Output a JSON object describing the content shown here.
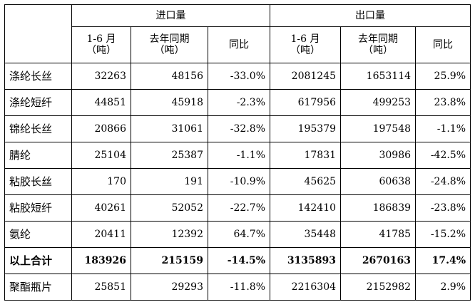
{
  "table": {
    "groups": {
      "import": "进口量",
      "export": "出口量"
    },
    "subheaders": {
      "import": [
        {
          "line1": "1-6 月",
          "line2": "（吨）"
        },
        {
          "line1": "去年同期",
          "line2": "（吨）"
        },
        {
          "line1": "同比",
          "line2": ""
        }
      ],
      "export": [
        {
          "line1": "1-6 月",
          "line2": "（吨）"
        },
        {
          "line1": "去年同期",
          "line2": "（吨）"
        },
        {
          "line1": "同比",
          "line2": ""
        }
      ]
    },
    "rows": [
      {
        "label": "涤纶长丝",
        "imp_cur": "32263",
        "imp_prev": "48156",
        "imp_yoy": "-33.0%",
        "exp_cur": "2081245",
        "exp_prev": "1653114",
        "exp_yoy": "25.9%"
      },
      {
        "label": "涤纶短纤",
        "imp_cur": "44851",
        "imp_prev": "45918",
        "imp_yoy": "-2.3%",
        "exp_cur": "617956",
        "exp_prev": "499253",
        "exp_yoy": "23.8%"
      },
      {
        "label": "锦纶长丝",
        "imp_cur": "20866",
        "imp_prev": "31061",
        "imp_yoy": "-32.8%",
        "exp_cur": "195379",
        "exp_prev": "197548",
        "exp_yoy": "-1.1%"
      },
      {
        "label": "腈纶",
        "imp_cur": "25104",
        "imp_prev": "25387",
        "imp_yoy": "-1.1%",
        "exp_cur": "17831",
        "exp_prev": "30986",
        "exp_yoy": "-42.5%"
      },
      {
        "label": "粘胶长丝",
        "imp_cur": "170",
        "imp_prev": "191",
        "imp_yoy": "-10.9%",
        "exp_cur": "45625",
        "exp_prev": "60638",
        "exp_yoy": "-24.8%"
      },
      {
        "label": "粘胶短纤",
        "imp_cur": "40261",
        "imp_prev": "52052",
        "imp_yoy": "-22.7%",
        "exp_cur": "142410",
        "exp_prev": "186839",
        "exp_yoy": "-23.8%"
      },
      {
        "label": "氨纶",
        "imp_cur": "20411",
        "imp_prev": "12392",
        "imp_yoy": "64.7%",
        "exp_cur": "35448",
        "exp_prev": "41785",
        "exp_yoy": "-15.2%"
      },
      {
        "label": "以上合计",
        "imp_cur": "183926",
        "imp_prev": "215159",
        "imp_yoy": "-14.5%",
        "exp_cur": "3135893",
        "exp_prev": "2670163",
        "exp_yoy": "17.4%",
        "total": true
      },
      {
        "label": "聚酯瓶片",
        "imp_cur": "25851",
        "imp_prev": "29293",
        "imp_yoy": "-11.8%",
        "exp_cur": "2216304",
        "exp_prev": "2152982",
        "exp_yoy": "2.9%"
      }
    ]
  }
}
